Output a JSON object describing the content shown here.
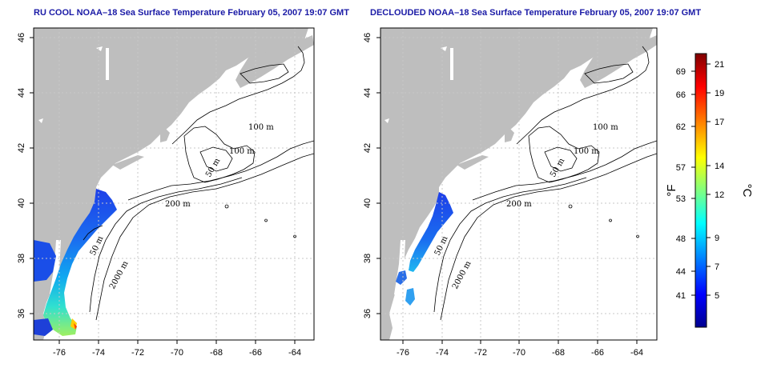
{
  "panels": [
    {
      "title": "RU COOL NOAA–18 Sea Surface Temperature February 05, 2007 19:07 GMT",
      "x_ticks": [
        "-76",
        "-74",
        "-72",
        "-70",
        "-68",
        "-66",
        "-64"
      ],
      "y_ticks": [
        "46",
        "44",
        "42",
        "40",
        "38",
        "36"
      ],
      "contour_labels": [
        "100 m",
        "100 m",
        "50 m",
        "200 m",
        "50 m",
        "2000 m"
      ]
    },
    {
      "title": "DECLOUDED NOAA–18 Sea Surface Temperature February 05, 2007 19:07 GMT",
      "x_ticks": [
        "-76",
        "-74",
        "-72",
        "-70",
        "-68",
        "-66",
        "-64"
      ],
      "y_ticks": [
        "46",
        "44",
        "42",
        "40",
        "38",
        "36"
      ],
      "contour_labels": [
        "100 m",
        "100 m",
        "50 m",
        "200 m",
        "50 m",
        "2000 m"
      ]
    }
  ],
  "colorbar": {
    "fahrenheit_unit": "°F",
    "celsius_unit": "°C",
    "fahrenheit_ticks": [
      "69",
      "66",
      "62",
      "57",
      "53",
      "48",
      "44",
      "41"
    ],
    "celsius_ticks": [
      "21",
      "19",
      "17",
      "14",
      "12",
      "9",
      "7",
      "5"
    ],
    "colors": [
      "#7f0000",
      "#ff0000",
      "#ff8000",
      "#ffff00",
      "#80ff80",
      "#00ffff",
      "#0080ff",
      "#0000ff",
      "#00008f"
    ]
  },
  "colors": {
    "land": "#bebebe",
    "ocean": "#ffffff",
    "title": "#1a1aa6",
    "grid": "#c8c8c8"
  }
}
